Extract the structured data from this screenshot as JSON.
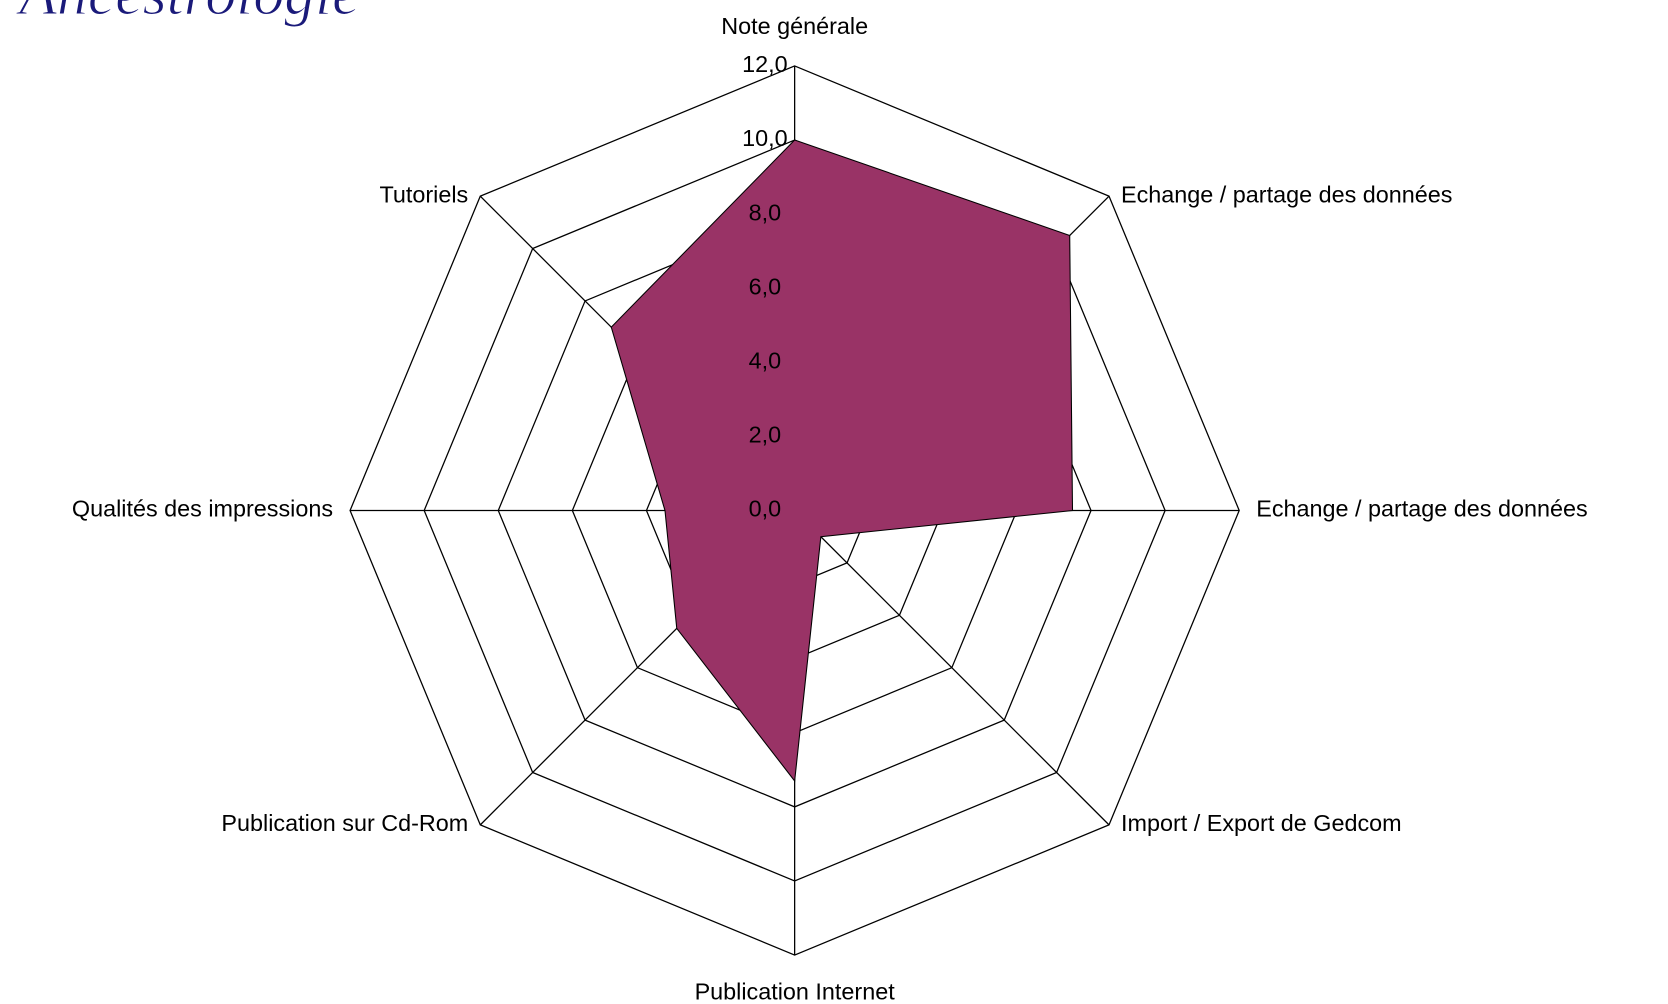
{
  "logo": "Ancestrologie",
  "chart_data": {
    "type": "radar",
    "categories": [
      "Note générale",
      "Echange / partage des données",
      "Echange / partage des données",
      "Import / Export de Gedcom",
      "Publication Internet",
      "Publication sur Cd-Rom",
      "Qualités des impressions",
      "Tutoriels"
    ],
    "values": [
      10.0,
      10.5,
      7.5,
      1.0,
      7.3,
      4.5,
      3.5,
      7.0
    ],
    "color": "#993366",
    "ylim": [
      0,
      12
    ],
    "yticks": [
      {
        "value": 0,
        "label": "0,0"
      },
      {
        "value": 2,
        "label": "2,0"
      },
      {
        "value": 4,
        "label": "4,0"
      },
      {
        "value": 6,
        "label": "6,0"
      },
      {
        "value": 8,
        "label": "8,0"
      },
      {
        "value": 10,
        "label": "10,0"
      },
      {
        "value": 12,
        "label": "12,0"
      }
    ],
    "grid": true
  }
}
